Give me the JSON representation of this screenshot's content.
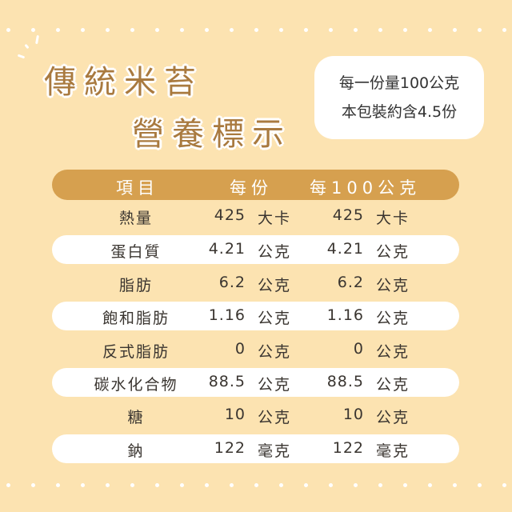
{
  "title": {
    "line1": "傳統米苔",
    "line2": "營養標示"
  },
  "serving_info": {
    "line1": "每一份量100公克",
    "line2": "本包裝約含4.5份"
  },
  "table": {
    "headers": [
      "項目",
      "每份",
      "每100公克"
    ],
    "rows": [
      {
        "name": "熱量",
        "per_serving": "425",
        "per_serving_unit": "大卡",
        "per_100g": "425",
        "per_100g_unit": "大卡"
      },
      {
        "name": "蛋白質",
        "per_serving": "4.21",
        "per_serving_unit": "公克",
        "per_100g": "4.21",
        "per_100g_unit": "公克"
      },
      {
        "name": "脂肪",
        "per_serving": "6.2",
        "per_serving_unit": "公克",
        "per_100g": "6.2",
        "per_100g_unit": "公克"
      },
      {
        "name": "飽和脂肪",
        "per_serving": "1.16",
        "per_serving_unit": "公克",
        "per_100g": "1.16",
        "per_100g_unit": "公克"
      },
      {
        "name": "反式脂肪",
        "per_serving": "0",
        "per_serving_unit": "公克",
        "per_100g": "0",
        "per_100g_unit": "公克"
      },
      {
        "name": "碳水化合物",
        "per_serving": "88.5",
        "per_serving_unit": "公克",
        "per_100g": "88.5",
        "per_100g_unit": "公克"
      },
      {
        "name": "糖",
        "per_serving": "10",
        "per_serving_unit": "公克",
        "per_100g": "10",
        "per_100g_unit": "公克"
      },
      {
        "name": "鈉",
        "per_serving": "122",
        "per_serving_unit": "毫克",
        "per_100g": "122",
        "per_100g_unit": "毫克"
      }
    ]
  },
  "colors": {
    "background": "#fce3b1",
    "header": "#d6a04f",
    "title": "#a97a3f"
  }
}
